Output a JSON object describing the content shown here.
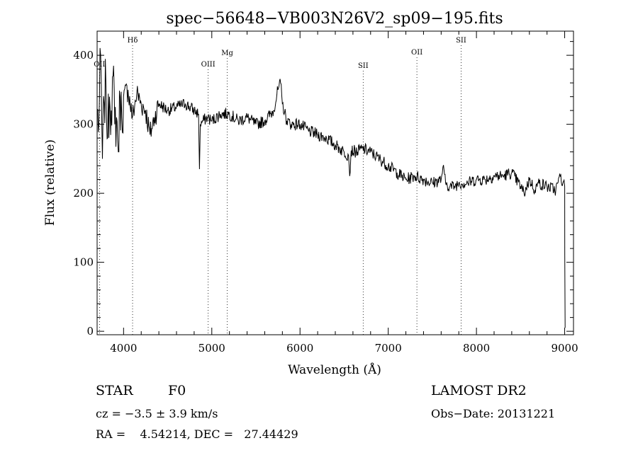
{
  "chart_data": {
    "type": "line",
    "title": "spec−56648−VB003N26V2_sp09−195.fits",
    "xlabel": "Wavelength (Å)",
    "ylabel": "Flux (relative)",
    "xlim": [
      3700,
      9100
    ],
    "ylim": [
      -5,
      435
    ],
    "xticks": [
      4000,
      5000,
      6000,
      7000,
      8000,
      9000
    ],
    "yticks": [
      0,
      100,
      200,
      300,
      400
    ],
    "grid": false,
    "lines": [
      {
        "label": "OII",
        "x": 3727
      },
      {
        "label": "Hδ",
        "x": 4102
      },
      {
        "label": "OIII",
        "x": 4959
      },
      {
        "label": "Mg",
        "x": 5175
      },
      {
        "label": "SII",
        "x": 6716
      },
      {
        "label": "OII",
        "x": 7325
      },
      {
        "label": "SII",
        "x": 7826
      }
    ],
    "series": [
      {
        "x": [
          3700,
          3720,
          3740,
          3760,
          3780,
          3800,
          3820,
          3840,
          3860,
          3880,
          3900,
          3920,
          3940,
          3960,
          3980,
          4000,
          4050,
          4100,
          4150,
          4200,
          4250,
          4300,
          4350,
          4400,
          4500,
          4600,
          4700,
          4800,
          4850,
          4860,
          4870,
          4900,
          4950,
          5000,
          5100,
          5200,
          5300,
          5400,
          5500,
          5600,
          5700,
          5750,
          5780,
          5800,
          5850,
          5900,
          6000,
          6100,
          6200,
          6300,
          6400,
          6500,
          6550,
          6563,
          6580,
          6650,
          6700,
          6800,
          6900,
          7000,
          7100,
          7200,
          7300,
          7400,
          7500,
          7600,
          7620,
          7650,
          7700,
          7750,
          7800,
          7900,
          8000,
          8100,
          8200,
          8300,
          8400,
          8500,
          8540,
          8600,
          8662,
          8700,
          8800,
          8900,
          8950,
          8980,
          9000,
          9001,
          9005
        ],
        "y": [
          320,
          300,
          400,
          250,
          330,
          360,
          280,
          340,
          320,
          370,
          300,
          310,
          260,
          340,
          310,
          340,
          350,
          310,
          345,
          330,
          320,
          285,
          310,
          330,
          320,
          325,
          330,
          320,
          315,
          235,
          300,
          305,
          310,
          305,
          315,
          315,
          305,
          310,
          300,
          305,
          320,
          350,
          360,
          330,
          305,
          300,
          300,
          290,
          285,
          280,
          270,
          260,
          255,
          225,
          262,
          260,
          265,
          260,
          250,
          240,
          230,
          220,
          225,
          220,
          215,
          220,
          238,
          215,
          210,
          210,
          215,
          215,
          220,
          220,
          225,
          225,
          230,
          210,
          200,
          220,
          205,
          215,
          210,
          205,
          225,
          215,
          210,
          110,
          5
        ]
      }
    ]
  },
  "info": {
    "class_label": "STAR",
    "subclass": "F0",
    "survey": "LAMOST DR2",
    "cz": "cz = −3.5 ± 3.9 km/s",
    "obs_date": "Obs−Date: 20131221",
    "coords": "RA =    4.54214, DEC =   27.44429"
  }
}
